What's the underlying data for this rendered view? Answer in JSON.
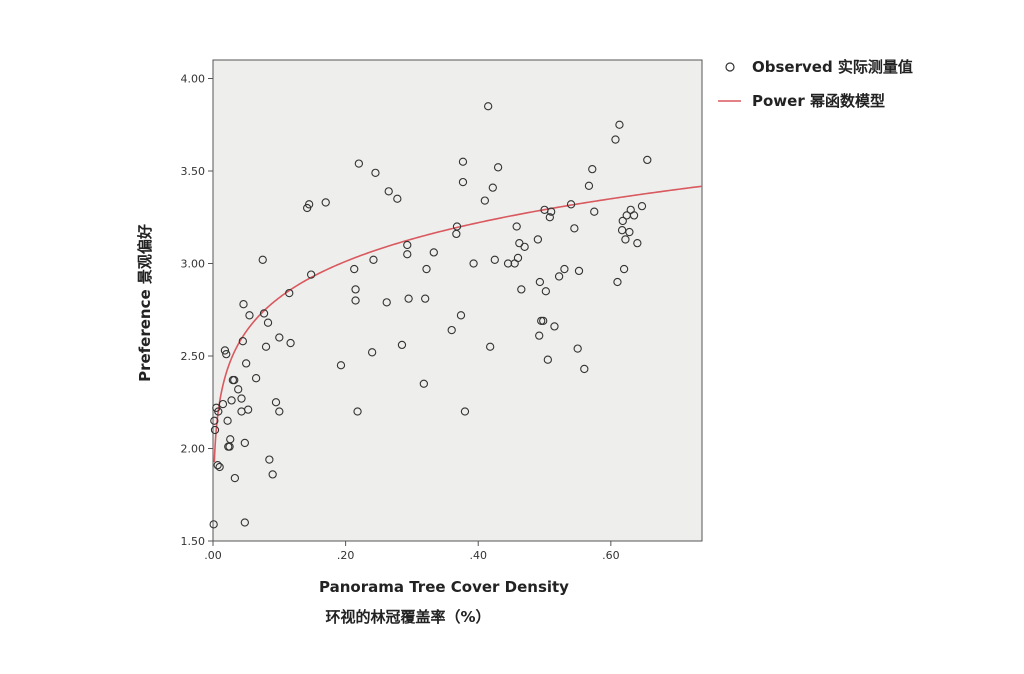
{
  "chart_data": {
    "type": "scatter",
    "xlabel": "Panorama Tree Cover Density",
    "xlabel_cn": "环视的林冠覆盖率（%）",
    "ylabel": "Preference 景观偏好",
    "xlim": [
      0,
      0.7375
    ],
    "ylim": [
      1.5,
      4.1
    ],
    "x_ticks": [
      0,
      0.2,
      0.4,
      0.6
    ],
    "x_tick_labels": [
      ".00",
      ".20",
      ".40",
      ".60"
    ],
    "y_ticks": [
      1.5,
      2.0,
      2.5,
      3.0,
      3.5,
      4.0
    ],
    "y_tick_labels": [
      "1.50",
      "2.00",
      "2.50",
      "3.00",
      "3.50",
      "4.00"
    ],
    "grid": false,
    "legend_position": "right",
    "legend": [
      "Observed 实际测量值",
      "Power 幂函数模型"
    ],
    "colors": {
      "observed": "#333333",
      "fit": "#d9595f",
      "plot_background": "#eeeeec"
    },
    "series": [
      {
        "name": "Observed 实际测量值",
        "kind": "scatter",
        "points": [
          [
            0.001,
            1.59
          ],
          [
            0.002,
            2.15
          ],
          [
            0.003,
            2.1
          ],
          [
            0.005,
            2.22
          ],
          [
            0.007,
            1.91
          ],
          [
            0.008,
            2.2
          ],
          [
            0.01,
            1.9
          ],
          [
            0.015,
            2.24
          ],
          [
            0.018,
            2.53
          ],
          [
            0.02,
            2.51
          ],
          [
            0.022,
            2.15
          ],
          [
            0.023,
            2.01
          ],
          [
            0.025,
            2.01
          ],
          [
            0.026,
            2.05
          ],
          [
            0.028,
            2.26
          ],
          [
            0.03,
            2.37
          ],
          [
            0.032,
            2.37
          ],
          [
            0.033,
            1.84
          ],
          [
            0.038,
            2.32
          ],
          [
            0.043,
            2.27
          ],
          [
            0.043,
            2.2
          ],
          [
            0.045,
            2.58
          ],
          [
            0.046,
            2.78
          ],
          [
            0.048,
            2.03
          ],
          [
            0.048,
            1.6
          ],
          [
            0.05,
            2.46
          ],
          [
            0.053,
            2.21
          ],
          [
            0.055,
            2.72
          ],
          [
            0.065,
            2.38
          ],
          [
            0.075,
            3.02
          ],
          [
            0.077,
            2.73
          ],
          [
            0.08,
            2.55
          ],
          [
            0.083,
            2.68
          ],
          [
            0.085,
            1.94
          ],
          [
            0.09,
            1.86
          ],
          [
            0.095,
            2.25
          ],
          [
            0.1,
            2.2
          ],
          [
            0.1,
            2.6
          ],
          [
            0.115,
            2.84
          ],
          [
            0.117,
            2.57
          ],
          [
            0.142,
            3.3
          ],
          [
            0.145,
            3.32
          ],
          [
            0.148,
            2.94
          ],
          [
            0.17,
            3.33
          ],
          [
            0.193,
            2.45
          ],
          [
            0.213,
            2.97
          ],
          [
            0.215,
            2.8
          ],
          [
            0.215,
            2.86
          ],
          [
            0.218,
            2.2
          ],
          [
            0.22,
            3.54
          ],
          [
            0.24,
            2.52
          ],
          [
            0.242,
            3.02
          ],
          [
            0.245,
            3.49
          ],
          [
            0.262,
            2.79
          ],
          [
            0.265,
            3.39
          ],
          [
            0.278,
            3.35
          ],
          [
            0.285,
            2.56
          ],
          [
            0.293,
            3.1
          ],
          [
            0.293,
            3.05
          ],
          [
            0.295,
            2.81
          ],
          [
            0.318,
            2.35
          ],
          [
            0.32,
            2.81
          ],
          [
            0.322,
            2.97
          ],
          [
            0.333,
            3.06
          ],
          [
            0.36,
            2.64
          ],
          [
            0.367,
            3.16
          ],
          [
            0.368,
            3.2
          ],
          [
            0.374,
            2.72
          ],
          [
            0.377,
            3.55
          ],
          [
            0.377,
            3.44
          ],
          [
            0.38,
            2.2
          ],
          [
            0.393,
            3.0
          ],
          [
            0.41,
            3.34
          ],
          [
            0.415,
            3.85
          ],
          [
            0.418,
            2.55
          ],
          [
            0.422,
            3.41
          ],
          [
            0.425,
            3.02
          ],
          [
            0.43,
            3.52
          ],
          [
            0.445,
            3.0
          ],
          [
            0.455,
            3.0
          ],
          [
            0.458,
            3.2
          ],
          [
            0.46,
            3.03
          ],
          [
            0.462,
            3.11
          ],
          [
            0.465,
            2.86
          ],
          [
            0.47,
            3.09
          ],
          [
            0.49,
            3.13
          ],
          [
            0.492,
            2.61
          ],
          [
            0.493,
            2.9
          ],
          [
            0.495,
            2.69
          ],
          [
            0.498,
            2.69
          ],
          [
            0.5,
            3.29
          ],
          [
            0.502,
            2.85
          ],
          [
            0.505,
            2.48
          ],
          [
            0.508,
            3.25
          ],
          [
            0.51,
            3.28
          ],
          [
            0.515,
            2.66
          ],
          [
            0.522,
            2.93
          ],
          [
            0.53,
            2.97
          ],
          [
            0.54,
            3.32
          ],
          [
            0.545,
            3.19
          ],
          [
            0.55,
            2.54
          ],
          [
            0.552,
            2.96
          ],
          [
            0.56,
            2.43
          ],
          [
            0.567,
            3.42
          ],
          [
            0.572,
            3.51
          ],
          [
            0.575,
            3.28
          ],
          [
            0.607,
            3.67
          ],
          [
            0.61,
            2.9
          ],
          [
            0.613,
            3.75
          ],
          [
            0.617,
            3.18
          ],
          [
            0.618,
            3.23
          ],
          [
            0.62,
            2.97
          ],
          [
            0.622,
            3.13
          ],
          [
            0.624,
            3.26
          ],
          [
            0.628,
            3.17
          ],
          [
            0.63,
            3.29
          ],
          [
            0.635,
            3.26
          ],
          [
            0.64,
            3.11
          ],
          [
            0.647,
            3.31
          ],
          [
            0.655,
            3.56
          ]
        ]
      },
      {
        "name": "Power 幂函数模型",
        "kind": "line",
        "model": {
          "form": "y = a * x^b",
          "a": 3.52,
          "b": 0.097
        },
        "x_start": 0.002,
        "x_end": 0.7375
      }
    ]
  }
}
